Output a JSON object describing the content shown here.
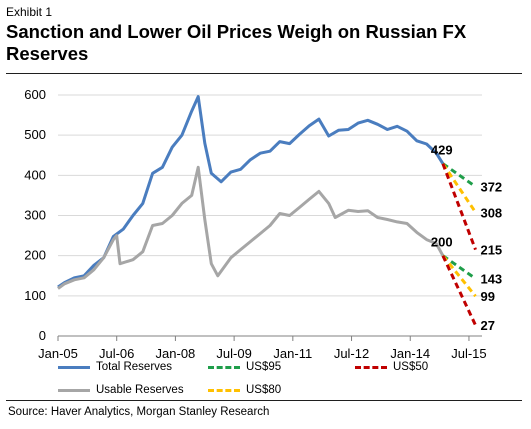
{
  "exhibit_label": "Exhibit 1",
  "title": "Sanction and Lower Oil Prices Weigh on Russian FX Reserves",
  "source": "Source: Haver Analytics, Morgan Stanley Research",
  "colors": {
    "total": "#4a7dbf",
    "usable": "#a6a6a6",
    "us95": "#1f9e4a",
    "us80": "#ffc000",
    "us50": "#c00000"
  },
  "chart_data": {
    "type": "line",
    "title": "Sanction and Lower Oil Prices Weigh on Russian FX Reserves",
    "ylim": [
      0,
      600
    ],
    "yticks": [
      0,
      100,
      200,
      300,
      400,
      500,
      600
    ],
    "xtick_labels": [
      "Jan-05",
      "Jul-06",
      "Jan-08",
      "Jul-09",
      "Jan-11",
      "Jul-12",
      "Jan-14",
      "Jul-15"
    ],
    "xtick_dates": [
      "2005-01",
      "2006-07",
      "2008-01",
      "2009-07",
      "2011-01",
      "2012-07",
      "2014-01",
      "2015-07"
    ],
    "grid": "horizontal",
    "series": [
      {
        "name": "Total Reserves",
        "color": "#4a7dbf",
        "style": "solid",
        "points": [
          [
            "2005-01",
            122
          ],
          [
            "2005-03",
            133
          ],
          [
            "2005-06",
            145
          ],
          [
            "2005-09",
            150
          ],
          [
            "2005-12",
            176
          ],
          [
            "2006-03",
            195
          ],
          [
            "2006-06",
            248
          ],
          [
            "2006-09",
            266
          ],
          [
            "2006-12",
            300
          ],
          [
            "2007-03",
            330
          ],
          [
            "2007-06",
            405
          ],
          [
            "2007-09",
            420
          ],
          [
            "2007-12",
            470
          ],
          [
            "2008-03",
            500
          ],
          [
            "2008-06",
            560
          ],
          [
            "2008-08",
            596
          ],
          [
            "2008-10",
            480
          ],
          [
            "2008-12",
            405
          ],
          [
            "2009-03",
            384
          ],
          [
            "2009-06",
            408
          ],
          [
            "2009-09",
            415
          ],
          [
            "2009-12",
            439
          ],
          [
            "2010-03",
            455
          ],
          [
            "2010-06",
            460
          ],
          [
            "2010-09",
            484
          ],
          [
            "2010-12",
            479
          ],
          [
            "2011-03",
            502
          ],
          [
            "2011-06",
            523
          ],
          [
            "2011-09",
            540
          ],
          [
            "2011-12",
            498
          ],
          [
            "2012-03",
            512
          ],
          [
            "2012-06",
            514
          ],
          [
            "2012-09",
            530
          ],
          [
            "2012-12",
            537
          ],
          [
            "2013-03",
            527
          ],
          [
            "2013-06",
            514
          ],
          [
            "2013-09",
            522
          ],
          [
            "2013-12",
            510
          ],
          [
            "2014-03",
            486
          ],
          [
            "2014-06",
            478
          ],
          [
            "2014-09",
            455
          ],
          [
            "2014-11",
            429
          ]
        ]
      },
      {
        "name": "Usable Reserves",
        "color": "#a6a6a6",
        "style": "solid",
        "points": [
          [
            "2005-01",
            118
          ],
          [
            "2005-03",
            130
          ],
          [
            "2005-06",
            140
          ],
          [
            "2005-09",
            145
          ],
          [
            "2005-12",
            165
          ],
          [
            "2006-03",
            195
          ],
          [
            "2006-06",
            240
          ],
          [
            "2006-07",
            250
          ],
          [
            "2006-08",
            180
          ],
          [
            "2006-12",
            190
          ],
          [
            "2007-03",
            210
          ],
          [
            "2007-06",
            275
          ],
          [
            "2007-09",
            280
          ],
          [
            "2007-12",
            300
          ],
          [
            "2008-03",
            330
          ],
          [
            "2008-06",
            350
          ],
          [
            "2008-08",
            420
          ],
          [
            "2008-10",
            290
          ],
          [
            "2008-12",
            180
          ],
          [
            "2009-02",
            150
          ],
          [
            "2009-06",
            195
          ],
          [
            "2009-09",
            215
          ],
          [
            "2009-12",
            235
          ],
          [
            "2010-03",
            255
          ],
          [
            "2010-06",
            275
          ],
          [
            "2010-09",
            305
          ],
          [
            "2010-12",
            300
          ],
          [
            "2011-03",
            320
          ],
          [
            "2011-06",
            340
          ],
          [
            "2011-09",
            360
          ],
          [
            "2011-12",
            330
          ],
          [
            "2012-02",
            295
          ],
          [
            "2012-06",
            313
          ],
          [
            "2012-09",
            310
          ],
          [
            "2012-12",
            312
          ],
          [
            "2013-03",
            295
          ],
          [
            "2013-06",
            290
          ],
          [
            "2013-09",
            284
          ],
          [
            "2013-12",
            280
          ],
          [
            "2014-03",
            258
          ],
          [
            "2014-06",
            240
          ],
          [
            "2014-09",
            230
          ],
          [
            "2014-11",
            200
          ]
        ]
      },
      {
        "name": "US$95",
        "color": "#1f9e4a",
        "style": "dashed",
        "points": [
          [
            "2014-11",
            429
          ],
          [
            "2015-09",
            372
          ]
        ]
      },
      {
        "name": "US$80",
        "color": "#ffc000",
        "style": "dashed",
        "points": [
          [
            "2014-11",
            429
          ],
          [
            "2015-09",
            308
          ]
        ]
      },
      {
        "name": "US$50",
        "color": "#c00000",
        "style": "dashed",
        "points": [
          [
            "2014-11",
            429
          ],
          [
            "2015-09",
            215
          ]
        ]
      },
      {
        "name": "US$95",
        "color": "#1f9e4a",
        "style": "dashed",
        "legend": false,
        "points": [
          [
            "2014-11",
            200
          ],
          [
            "2015-09",
            143
          ]
        ]
      },
      {
        "name": "US$80",
        "color": "#ffc000",
        "style": "dashed",
        "legend": false,
        "points": [
          [
            "2014-11",
            200
          ],
          [
            "2015-09",
            99
          ]
        ]
      },
      {
        "name": "US$50",
        "color": "#c00000",
        "style": "dashed",
        "legend": false,
        "points": [
          [
            "2014-11",
            200
          ],
          [
            "2015-09",
            27
          ]
        ]
      }
    ],
    "annotations": [
      {
        "text": "429",
        "x": "2014-11",
        "y": 429,
        "anchor": "above"
      },
      {
        "text": "200",
        "x": "2014-11",
        "y": 200,
        "anchor": "above"
      },
      {
        "text": "372",
        "x": "2015-09",
        "y": 372,
        "anchor": "right"
      },
      {
        "text": "308",
        "x": "2015-09",
        "y": 308,
        "anchor": "right"
      },
      {
        "text": "215",
        "x": "2015-09",
        "y": 215,
        "anchor": "right"
      },
      {
        "text": "143",
        "x": "2015-09",
        "y": 143,
        "anchor": "right"
      },
      {
        "text": "99",
        "x": "2015-09",
        "y": 99,
        "anchor": "right"
      },
      {
        "text": "27",
        "x": "2015-09",
        "y": 27,
        "anchor": "right"
      }
    ],
    "legend": [
      {
        "label": "Total Reserves",
        "color": "#4a7dbf",
        "style": "solid"
      },
      {
        "label": "US$95",
        "color": "#1f9e4a",
        "style": "dashed"
      },
      {
        "label": "US$50",
        "color": "#c00000",
        "style": "dashed"
      },
      {
        "label": "Usable Reserves",
        "color": "#a6a6a6",
        "style": "solid"
      },
      {
        "label": "US$80",
        "color": "#ffc000",
        "style": "dashed"
      }
    ],
    "legend_position": "bottom"
  }
}
